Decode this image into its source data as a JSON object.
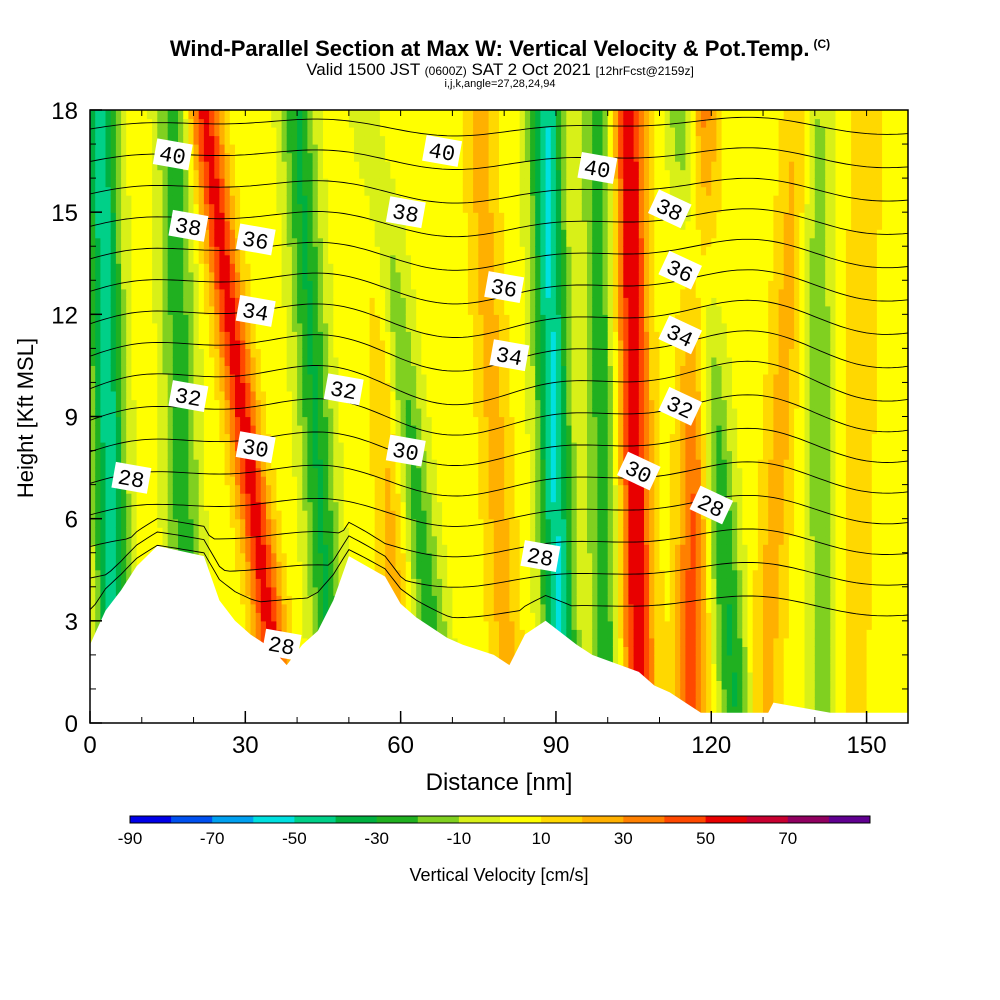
{
  "header": {
    "title": "Wind-Parallel Section at Max W: Vertical Velocity & Pot.Temp.",
    "copyright": "(C)",
    "valid_prefix": "Valid 1500 JST",
    "valid_utc": "(0600Z)",
    "valid_date": "SAT 2 Oct 2021",
    "forecast": "[12hrFcst@2159z]",
    "params": "i,j,k,angle=27,28,24,94"
  },
  "chart_data": {
    "type": "heatmap",
    "xlabel": "Distance [nm]",
    "ylabel": "Height [Kft MSL]",
    "xlim": [
      0,
      158
    ],
    "ylim": [
      0,
      18
    ],
    "x_ticks": [
      0,
      30,
      60,
      90,
      120,
      150
    ],
    "y_ticks": [
      0,
      3,
      6,
      9,
      12,
      15,
      18
    ],
    "colorbar": {
      "label": "Vertical Velocity [cm/s]",
      "boundaries": [
        -90,
        -80,
        -70,
        -60,
        -50,
        -40,
        -30,
        -20,
        -10,
        0,
        10,
        20,
        30,
        40,
        50,
        60,
        70,
        80
      ],
      "tick_labels": [
        -90,
        -70,
        -50,
        -30,
        -10,
        10,
        30,
        50,
        70
      ],
      "colors": [
        "#0000e8",
        "#0050f0",
        "#00a0f0",
        "#00e0e0",
        "#00d088",
        "#00b040",
        "#20b020",
        "#80d020",
        "#d8f018",
        "#ffff00",
        "#ffd800",
        "#ffb000",
        "#ff8000",
        "#ff4800",
        "#e80000",
        "#c80030",
        "#900060",
        "#600090"
      ]
    },
    "updraft_bands": [
      {
        "x_bottom": 37,
        "x_top": 22,
        "peak": 50
      },
      {
        "x_bottom": 60,
        "x_top": 55,
        "peak": 20
      },
      {
        "x_bottom": 81,
        "x_top": 75,
        "peak": 20
      },
      {
        "x_bottom": 106,
        "x_top": 104,
        "peak": 55
      },
      {
        "x_bottom": 116,
        "x_top": 118,
        "peak": 40
      },
      {
        "x_bottom": 130,
        "x_top": 137,
        "peak": 20
      },
      {
        "x_bottom": 147,
        "x_top": 150,
        "peak": 15
      }
    ],
    "downdraft_bands": [
      {
        "x_bottom": 5,
        "x_top": 2,
        "peak": -50
      },
      {
        "x_bottom": 19,
        "x_top": 16,
        "peak": -30
      },
      {
        "x_bottom": 47,
        "x_top": 40,
        "peak": -35
      },
      {
        "x_bottom": 68,
        "x_top": 54,
        "peak": -30
      },
      {
        "x_bottom": 91,
        "x_top": 88,
        "peak": -55
      },
      {
        "x_bottom": 100,
        "x_top": 98,
        "peak": -30
      },
      {
        "x_bottom": 125,
        "x_top": 115,
        "peak": -35
      },
      {
        "x_bottom": 142,
        "x_top": 140,
        "peak": -20
      }
    ],
    "terrain": [
      {
        "x": 0,
        "h": 2.3
      },
      {
        "x": 3,
        "h": 3.3
      },
      {
        "x": 6,
        "h": 3.9
      },
      {
        "x": 9,
        "h": 4.6
      },
      {
        "x": 13,
        "h": 5.2
      },
      {
        "x": 22,
        "h": 4.9
      },
      {
        "x": 25,
        "h": 3.6
      },
      {
        "x": 28,
        "h": 3.0
      },
      {
        "x": 31,
        "h": 2.6
      },
      {
        "x": 35,
        "h": 2.2
      },
      {
        "x": 38,
        "h": 1.7
      },
      {
        "x": 41,
        "h": 2.3
      },
      {
        "x": 44,
        "h": 2.7
      },
      {
        "x": 47,
        "h": 3.6
      },
      {
        "x": 50,
        "h": 4.9
      },
      {
        "x": 57,
        "h": 4.3
      },
      {
        "x": 60,
        "h": 3.5
      },
      {
        "x": 63,
        "h": 3.1
      },
      {
        "x": 66,
        "h": 2.8
      },
      {
        "x": 69,
        "h": 2.5
      },
      {
        "x": 72,
        "h": 2.3
      },
      {
        "x": 78,
        "h": 2.0
      },
      {
        "x": 81,
        "h": 1.7
      },
      {
        "x": 84,
        "h": 2.6
      },
      {
        "x": 88,
        "h": 3.0
      },
      {
        "x": 94,
        "h": 2.3
      },
      {
        "x": 97,
        "h": 2.0
      },
      {
        "x": 106,
        "h": 1.5
      },
      {
        "x": 109,
        "h": 1.1
      },
      {
        "x": 112,
        "h": 0.9
      },
      {
        "x": 115,
        "h": 0.6
      },
      {
        "x": 118,
        "h": 0.3
      },
      {
        "x": 131,
        "h": 0.3
      },
      {
        "x": 132,
        "h": 0.6
      },
      {
        "x": 143,
        "h": 0.3
      },
      {
        "x": 158,
        "h": 0.3
      }
    ],
    "isentropes": {
      "levels": [
        26,
        27,
        28,
        29,
        30,
        31,
        32,
        33,
        34,
        35,
        36,
        37,
        38,
        39,
        40,
        41,
        42
      ],
      "labeled_levels": [
        28,
        30,
        32,
        34,
        36,
        38,
        40
      ],
      "labels": [
        {
          "value": 28,
          "x": 8,
          "y": 7.2
        },
        {
          "value": 28,
          "x": 37,
          "y": 2.3
        },
        {
          "value": 28,
          "x": 87,
          "y": 4.9
        },
        {
          "value": 28,
          "x": 120,
          "y": 6.4
        },
        {
          "value": 30,
          "x": 32,
          "y": 8.1
        },
        {
          "value": 30,
          "x": 61,
          "y": 8.0
        },
        {
          "value": 30,
          "x": 106,
          "y": 7.4
        },
        {
          "value": 32,
          "x": 19,
          "y": 9.6
        },
        {
          "value": 32,
          "x": 49,
          "y": 9.8
        },
        {
          "value": 32,
          "x": 114,
          "y": 9.3
        },
        {
          "value": 34,
          "x": 32,
          "y": 12.1
        },
        {
          "value": 34,
          "x": 81,
          "y": 10.8
        },
        {
          "value": 34,
          "x": 114,
          "y": 11.4
        },
        {
          "value": 36,
          "x": 32,
          "y": 14.2
        },
        {
          "value": 36,
          "x": 80,
          "y": 12.8
        },
        {
          "value": 36,
          "x": 114,
          "y": 13.3
        },
        {
          "value": 38,
          "x": 19,
          "y": 14.6
        },
        {
          "value": 38,
          "x": 61,
          "y": 15.0
        },
        {
          "value": 38,
          "x": 112,
          "y": 15.1
        },
        {
          "value": 40,
          "x": 16,
          "y": 16.7
        },
        {
          "value": 40,
          "x": 68,
          "y": 16.8
        },
        {
          "value": 40,
          "x": 98,
          "y": 16.3
        }
      ]
    }
  }
}
